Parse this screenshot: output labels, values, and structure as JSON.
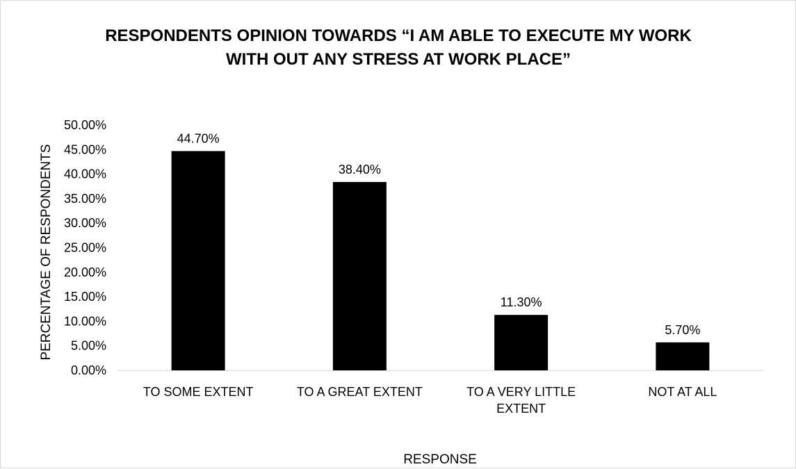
{
  "chart_data": {
    "type": "bar",
    "title_lines": [
      "RESPONDENTS OPINION TOWARDS “I AM ABLE TO EXECUTE MY WORK",
      "WITH OUT ANY STRESS AT WORK PLACE”"
    ],
    "categories": [
      [
        "TO SOME EXTENT"
      ],
      [
        "TO A GREAT EXTENT"
      ],
      [
        "TO A VERY LITTLE",
        "EXTENT"
      ],
      [
        "NOT AT ALL"
      ]
    ],
    "values": [
      44.7,
      38.4,
      11.3,
      5.7
    ],
    "data_labels": [
      "44.70%",
      "38.40%",
      "11.30%",
      "5.70%"
    ],
    "yticks": [
      "0.00%",
      "5.00%",
      "10.00%",
      "15.00%",
      "20.00%",
      "25.00%",
      "30.00%",
      "35.00%",
      "40.00%",
      "45.00%",
      "50.00%"
    ],
    "ylim": [
      0,
      50
    ],
    "xlabel": "RESPONSE",
    "ylabel": "PERCENTAGE OF RESPONDENTS",
    "grid": false,
    "legend": "none",
    "bar_color": "#000000",
    "axis_color": "#d9d9d9"
  }
}
